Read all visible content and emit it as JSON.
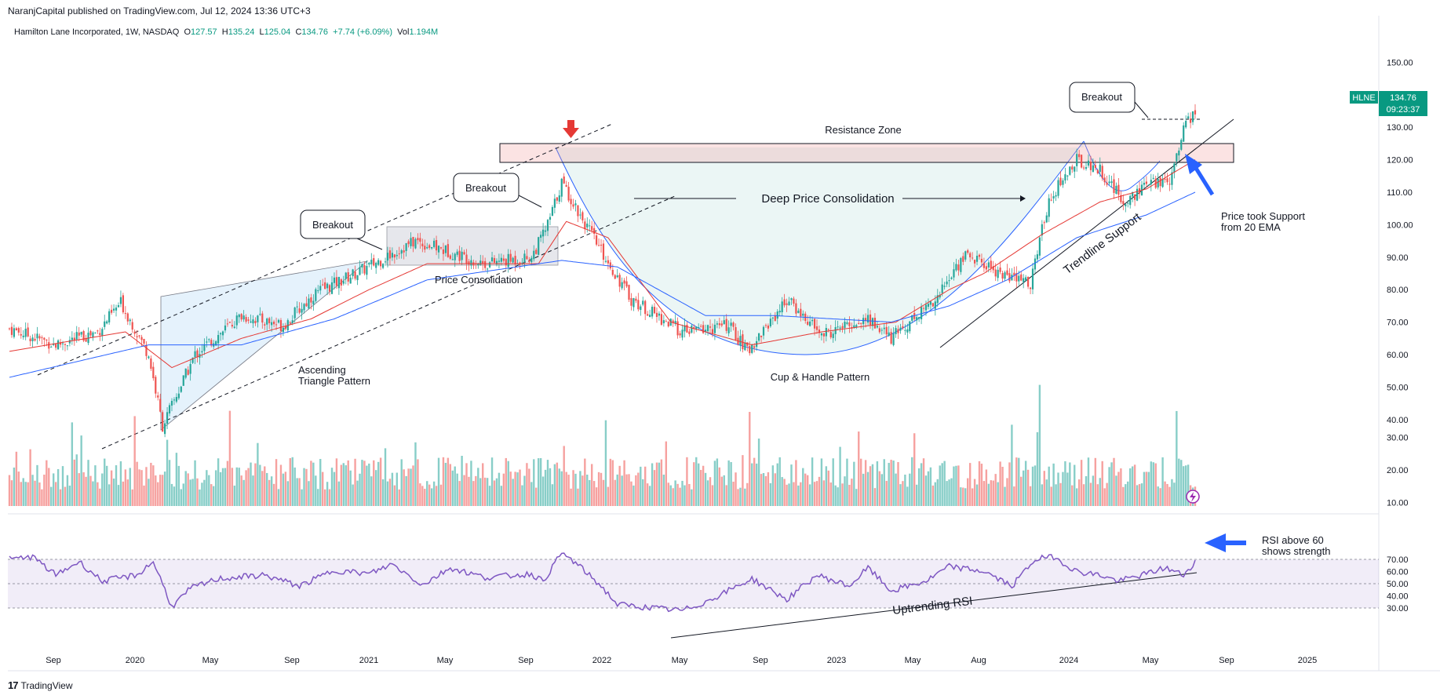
{
  "published": "NaranjCapital published on TradingView.com, Jul 12, 2024 13:36 UTC+3",
  "legend": {
    "symbol": "Hamilton Lane Incorporated, 1W, NASDAQ",
    "o_label": "O",
    "o": "127.57",
    "h_label": "H",
    "h": "135.24",
    "l_label": "L",
    "l": "125.04",
    "c_label": "C",
    "c": "134.76",
    "change": "+7.74 (+6.09%)",
    "vol_label": "Vol",
    "vol": "1.194M"
  },
  "price_badge": {
    "ticker": "HLNE",
    "price": "134.76",
    "countdown": "09:23:37"
  },
  "footer": {
    "logo": "17",
    "brand": "TradingView"
  },
  "colors": {
    "up": "#26a69a",
    "down": "#ef5350",
    "ema20": "#e53935",
    "ema50": "#2962ff",
    "rsi": "#7e57c2",
    "badge": "#089981"
  },
  "chart_data": {
    "type": "candlestick",
    "price_axis": {
      "ticks": [
        "150.00",
        "140.00",
        "130.00",
        "120.00",
        "110.00",
        "100.00",
        "90.00",
        "80.00",
        "70.00",
        "60.00",
        "50.00",
        "40.00"
      ],
      "range": [
        31,
        155
      ]
    },
    "volume_axis": {
      "ticks": [
        "30.00",
        "20.00",
        "10.00"
      ]
    },
    "rsi_axis": {
      "ticks": [
        "70.00",
        "60.00",
        "50.00",
        "40.00",
        "30.00"
      ],
      "range": [
        25,
        78
      ],
      "band": [
        40,
        60
      ]
    },
    "x_axis": {
      "ticks": [
        "Sep",
        "2020",
        "May",
        "Sep",
        "2021",
        "May",
        "Sep",
        "2022",
        "May",
        "Sep",
        "2023",
        "May",
        "Aug",
        "2024",
        "May",
        "Sep",
        "2025"
      ]
    },
    "series": [
      {
        "name": "HLNE",
        "anchors": [
          [
            0,
            68
          ],
          [
            20,
            63
          ],
          [
            38,
            67
          ],
          [
            48,
            76
          ],
          [
            60,
            60
          ],
          [
            66,
            38
          ],
          [
            80,
            60
          ],
          [
            100,
            72
          ],
          [
            118,
            69
          ],
          [
            132,
            79
          ],
          [
            152,
            86
          ],
          [
            175,
            95
          ],
          [
            205,
            88
          ],
          [
            225,
            90
          ],
          [
            232,
            100
          ],
          [
            238,
            113
          ],
          [
            254,
            93
          ],
          [
            268,
            77
          ],
          [
            290,
            67
          ],
          [
            310,
            69
          ],
          [
            318,
            61
          ],
          [
            335,
            77
          ],
          [
            350,
            66
          ],
          [
            370,
            71
          ],
          [
            380,
            65
          ],
          [
            400,
            78
          ],
          [
            412,
            91
          ],
          [
            430,
            84
          ],
          [
            440,
            82
          ],
          [
            448,
            108
          ],
          [
            460,
            120
          ],
          [
            470,
            117
          ],
          [
            480,
            107
          ],
          [
            490,
            112
          ],
          [
            500,
            114
          ],
          [
            506,
            130
          ],
          [
            511,
            135
          ]
        ]
      }
    ],
    "ema20_anchors": [
      [
        0,
        61
      ],
      [
        50,
        67
      ],
      [
        70,
        56
      ],
      [
        100,
        65
      ],
      [
        130,
        71
      ],
      [
        155,
        80
      ],
      [
        180,
        88
      ],
      [
        228,
        88
      ],
      [
        240,
        101
      ],
      [
        258,
        96
      ],
      [
        285,
        70
      ],
      [
        320,
        63
      ],
      [
        350,
        67
      ],
      [
        382,
        70
      ],
      [
        405,
        80
      ],
      [
        420,
        85
      ],
      [
        445,
        97
      ],
      [
        470,
        107
      ],
      [
        490,
        111
      ],
      [
        511,
        120
      ]
    ],
    "ema50_anchors": [
      [
        0,
        53
      ],
      [
        60,
        63
      ],
      [
        100,
        63
      ],
      [
        140,
        71
      ],
      [
        180,
        83
      ],
      [
        238,
        89
      ],
      [
        262,
        87
      ],
      [
        300,
        72
      ],
      [
        330,
        72
      ],
      [
        380,
        70
      ],
      [
        405,
        75
      ],
      [
        430,
        83
      ],
      [
        460,
        96
      ],
      [
        490,
        103
      ],
      [
        511,
        110
      ]
    ],
    "rsi_anchors": [
      [
        0,
        70
      ],
      [
        10,
        72
      ],
      [
        20,
        57
      ],
      [
        30,
        68
      ],
      [
        40,
        52
      ],
      [
        55,
        57
      ],
      [
        62,
        68
      ],
      [
        66,
        50
      ],
      [
        70,
        31
      ],
      [
        78,
        46
      ],
      [
        90,
        54
      ],
      [
        110,
        57
      ],
      [
        125,
        48
      ],
      [
        140,
        61
      ],
      [
        155,
        58
      ],
      [
        165,
        66
      ],
      [
        178,
        49
      ],
      [
        190,
        63
      ],
      [
        205,
        55
      ],
      [
        225,
        58
      ],
      [
        230,
        52
      ],
      [
        238,
        75
      ],
      [
        244,
        67
      ],
      [
        255,
        48
      ],
      [
        262,
        33
      ],
      [
        278,
        30
      ],
      [
        290,
        28
      ],
      [
        300,
        35
      ],
      [
        320,
        54
      ],
      [
        335,
        37
      ],
      [
        348,
        57
      ],
      [
        362,
        48
      ],
      [
        370,
        63
      ],
      [
        380,
        44
      ],
      [
        395,
        52
      ],
      [
        405,
        64
      ],
      [
        420,
        60
      ],
      [
        432,
        48
      ],
      [
        442,
        70
      ],
      [
        450,
        72
      ],
      [
        460,
        60
      ],
      [
        470,
        57
      ],
      [
        478,
        52
      ],
      [
        490,
        58
      ],
      [
        498,
        63
      ],
      [
        506,
        57
      ],
      [
        511,
        68
      ]
    ],
    "annotations": [
      "Breakout",
      "Breakout",
      "Breakout",
      "Resistance Zone",
      "Deep Price Consolidation",
      "Price Consolidation",
      "Ascending",
      "Triangle Pattern",
      "Cup & Handle Pattern",
      "Trendline Support",
      "Price took Support",
      "from 20 EMA",
      "RSI above 60",
      "shows strength",
      "Uptrending RSI"
    ]
  }
}
